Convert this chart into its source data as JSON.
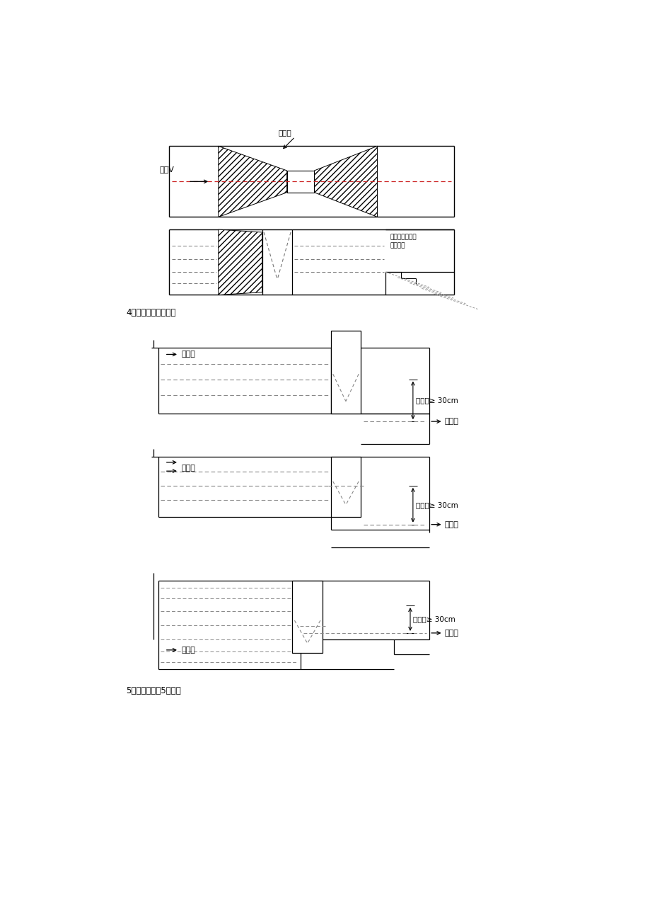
{
  "bg_color": "#ffffff",
  "line_color": "#000000",
  "label_section4": "4、安装中的几种情况",
  "label_section5": "5、举例说明（5号槽）",
  "label_concrete": "混凝土",
  "label_flow": "流向V",
  "label_downstream": "下游保证水位差\n灸水畅通",
  "label_inlet": "进水口",
  "label_outlet": "出水口",
  "label_head_diff": "水位差≥ 30cm"
}
